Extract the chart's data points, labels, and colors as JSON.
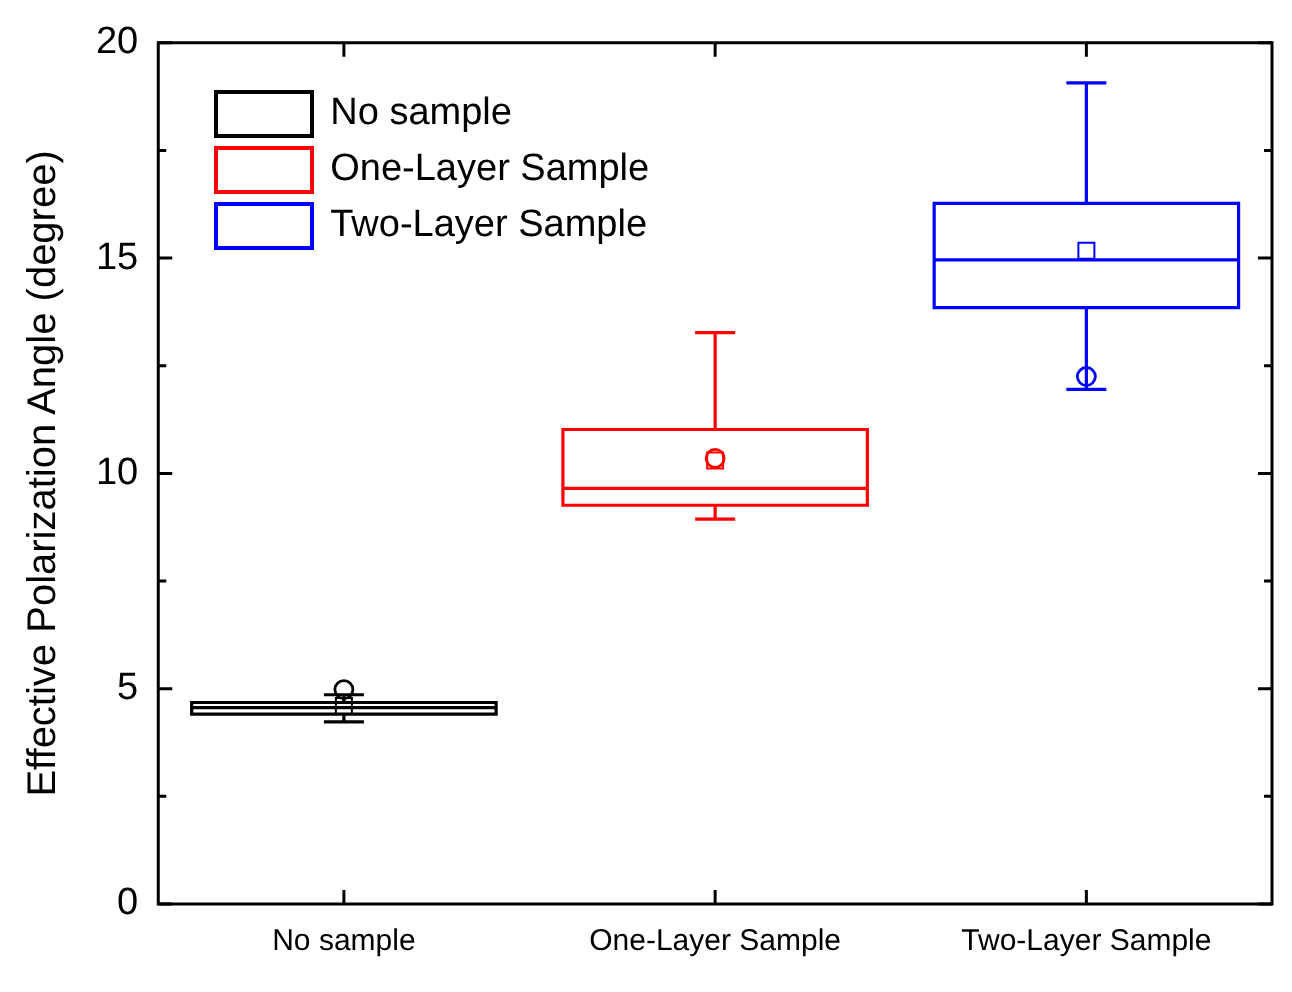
{
  "chart_data": {
    "type": "box",
    "ylabel": "Effective Polarization Angle (degree)",
    "categories": [
      "No sample",
      "One-Layer Sample",
      "Two-Layer Sample"
    ],
    "series": [
      {
        "name": "No sample",
        "color": "#000000",
        "boxes": [
          {
            "low": 4.23,
            "q1": 4.41,
            "median": 4.56,
            "q3": 4.68,
            "high": 4.86,
            "mean": 4.6,
            "outliers": [
              4.98
            ]
          },
          null,
          null
        ]
      },
      {
        "name": "One-Layer Sample",
        "color": "#ff0000",
        "boxes": [
          null,
          {
            "low": 8.94,
            "q1": 9.26,
            "median": 9.65,
            "q3": 11.02,
            "high": 13.27,
            "mean": 10.3,
            "outliers": [
              10.35
            ]
          },
          null
        ]
      },
      {
        "name": "Two-Layer Sample",
        "color": "#0000ff",
        "boxes": [
          null,
          null,
          {
            "low": 11.95,
            "q1": 13.85,
            "median": 14.96,
            "q3": 16.27,
            "high": 19.07,
            "mean": 15.17,
            "outliers": [
              12.25
            ]
          }
        ]
      }
    ],
    "ylim": [
      0,
      20
    ],
    "yticks": [
      0,
      {
        "value": 2.5,
        "label": null
      },
      5,
      {
        "value": 7.5,
        "label": null
      },
      10,
      {
        "value": 12.5,
        "label": null
      },
      15,
      {
        "value": 17.5,
        "label": null
      },
      20
    ],
    "legend": "top left",
    "grid": false
  }
}
